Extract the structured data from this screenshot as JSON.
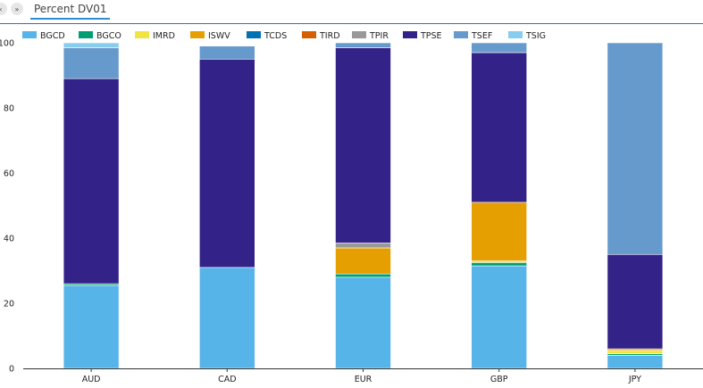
{
  "tab": {
    "label": "Percent DV01"
  },
  "nav": {
    "prev_icon": "chevron-left-icon",
    "next_icon": "double-chevron-right-icon"
  },
  "chart_data": {
    "type": "bar",
    "stacked": true,
    "title": "",
    "xlabel": "",
    "ylabel": "",
    "ylim": [
      0,
      100
    ],
    "yticks": [
      0,
      20,
      40,
      60,
      80,
      100
    ],
    "legend_position": "top",
    "categories": [
      "AUD",
      "CAD",
      "EUR",
      "GBP",
      "JPY"
    ],
    "series": [
      {
        "name": "BGCD",
        "color": "#56b4e9",
        "values": [
          25.5,
          31,
          28,
          31.5,
          4
        ]
      },
      {
        "name": "BGCO",
        "color": "#009e73",
        "values": [
          0.5,
          0,
          1,
          1,
          0.5
        ]
      },
      {
        "name": "IMRD",
        "color": "#f0e442",
        "values": [
          0,
          0,
          0,
          0.5,
          1
        ]
      },
      {
        "name": "ISWV",
        "color": "#e69f00",
        "values": [
          0,
          0,
          8,
          18,
          0.5
        ]
      },
      {
        "name": "TCDS",
        "color": "#0072b2",
        "values": [
          0,
          0,
          0,
          0,
          0
        ]
      },
      {
        "name": "TIRD",
        "color": "#d55e00",
        "values": [
          0,
          0,
          0,
          0,
          0
        ]
      },
      {
        "name": "TPIR",
        "color": "#999999",
        "values": [
          0,
          0,
          1.5,
          0,
          0
        ]
      },
      {
        "name": "TPSE",
        "color": "#332288",
        "values": [
          63,
          64,
          60,
          46,
          29
        ]
      },
      {
        "name": "TSEF",
        "color": "#6699cc",
        "values": [
          9.5,
          4,
          1.5,
          3,
          65
        ]
      },
      {
        "name": "TSIG",
        "color": "#88ccee",
        "values": [
          1.5,
          0,
          0,
          0,
          0
        ]
      }
    ]
  }
}
